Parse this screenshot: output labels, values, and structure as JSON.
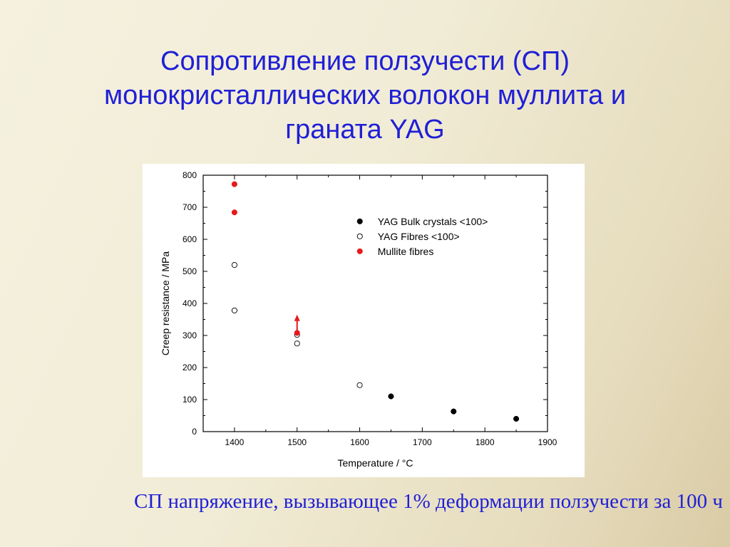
{
  "slide": {
    "title_lines": [
      "Сопротивление ползучести (СП)",
      "монокристаллических волокон муллита и",
      "граната YAG"
    ],
    "footer": "СП напряжение, вызывающее 1% деформации ползучести за 100 ч"
  },
  "chart_data": {
    "type": "scatter",
    "xlabel": "Temperature / °C",
    "ylabel": "Creep resistance / MPa",
    "xlim": [
      1350,
      1900
    ],
    "ylim": [
      0,
      800
    ],
    "x_ticks": [
      1400,
      1500,
      1600,
      1700,
      1800,
      1900
    ],
    "y_ticks": [
      0,
      100,
      200,
      300,
      400,
      500,
      600,
      700,
      800
    ],
    "grid": false,
    "legend_position": "top-right",
    "series": [
      {
        "name": "YAG Bulk crystals <100>",
        "marker": "filled-circle",
        "color": "#000000",
        "x": [
          1650,
          1750,
          1850
        ],
        "y": [
          110,
          63,
          40
        ]
      },
      {
        "name": "YAG Fibres <100>",
        "marker": "open-circle",
        "color": "#000000",
        "x": [
          1400,
          1400,
          1500,
          1500,
          1600
        ],
        "y": [
          520,
          378,
          302,
          275,
          145
        ]
      },
      {
        "name": "Mullite fibres",
        "marker": "filled-circle",
        "color": "#e41a1c",
        "x": [
          1400,
          1400,
          1500
        ],
        "y": [
          772,
          684,
          308
        ]
      }
    ],
    "annotations": [
      {
        "type": "arrow-up",
        "color": "#e41a1c",
        "x": 1500,
        "y_from": 308,
        "y_to": 365
      }
    ]
  }
}
